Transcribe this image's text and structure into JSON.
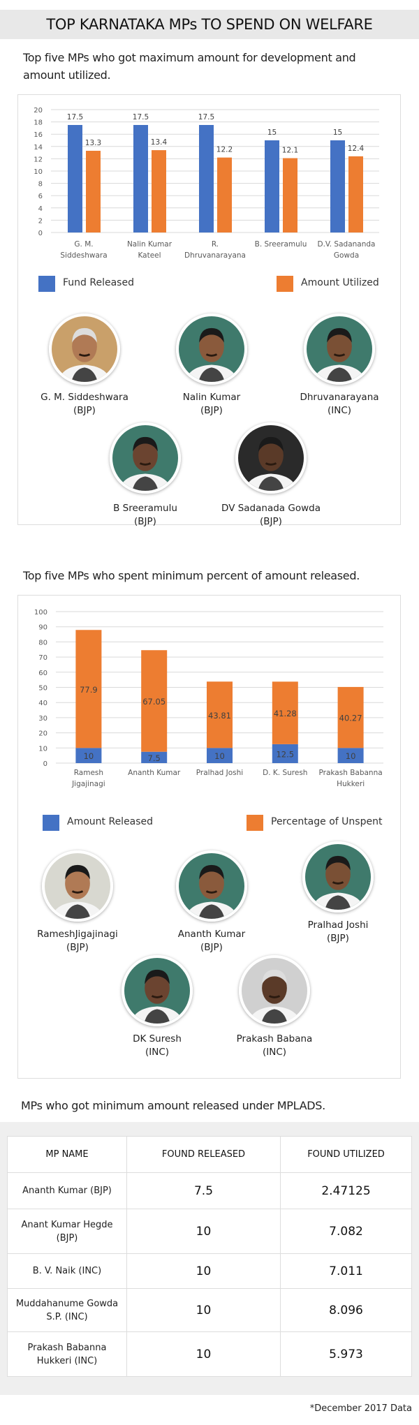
{
  "title": "TOP KARNATAKA MPs TO SPEND ON WELFARE",
  "section1": {
    "subtitle": "Top five MPs who got maximum amount for development and amount utilized.",
    "profiles": [
      {
        "name": "G. M. Siddeshwara",
        "party": "(BJP)"
      },
      {
        "name": "Nalin Kumar",
        "party": "(BJP)"
      },
      {
        "name": "Dhruvanarayana",
        "party": "(INC)"
      },
      {
        "name": "B Sreeramulu",
        "party": "(BJP)"
      },
      {
        "name": "DV Sadanada Gowda",
        "party": "(BJP)"
      }
    ]
  },
  "section2": {
    "subtitle": "Top five MPs who spent minimum percent of amount released.",
    "profiles": [
      {
        "name": "RameshJigajinagi",
        "party": "(BJP)"
      },
      {
        "name": "Ananth Kumar",
        "party": "(BJP)"
      },
      {
        "name": "Pralhad Joshi",
        "party": "(BJP)"
      },
      {
        "name": "DK Suresh",
        "party": "(INC)"
      },
      {
        "name": "Prakash Babana",
        "party": "(INC)"
      }
    ]
  },
  "section3": {
    "subtitle": "MPs who got minimum amount released under MPLADS.",
    "headers": [
      "MP NAME",
      "FOUND RELEASED",
      "FOUND UTILIZED"
    ],
    "rows": [
      [
        "Ananth Kumar (BJP)",
        "7.5",
        "2.47125"
      ],
      [
        "Anant Kumar Hegde (BJP)",
        "10",
        "7.082"
      ],
      [
        "B. V. Naik (INC)",
        "10",
        "7.011"
      ],
      [
        "Muddahanume Gowda S.P. (INC)",
        "10",
        "8.096"
      ],
      [
        "Prakash Babanna Hukkeri (INC)",
        "10",
        "5.973"
      ]
    ]
  },
  "footnote": "*December 2017 Data",
  "colors": {
    "blue": "#4472c4",
    "orange": "#ed7d31"
  },
  "chart_data": [
    {
      "type": "bar",
      "categories": [
        [
          "G. M.",
          "Siddeshwara"
        ],
        [
          "Nalin Kumar",
          "Kateel"
        ],
        [
          "R.",
          "Dhruvanarayana"
        ],
        [
          "B. Sreeramulu"
        ],
        [
          "D.V. Sadananda",
          "Gowda"
        ]
      ],
      "series": [
        {
          "name": "Fund Released",
          "values": [
            17.5,
            17.5,
            17.5,
            15,
            15
          ],
          "color": "#4472c4"
        },
        {
          "name": "Amount Utilized",
          "values": [
            13.3,
            13.4,
            12.2,
            12.1,
            12.4
          ],
          "color": "#ed7d31"
        }
      ],
      "ylim": [
        0,
        20
      ],
      "yticks": [
        0,
        2,
        4,
        6,
        8,
        10,
        12,
        14,
        16,
        18,
        20
      ],
      "grid": true,
      "legend": "bottom",
      "data_labels": true
    },
    {
      "type": "bar",
      "stacked": true,
      "categories": [
        [
          "Ramesh",
          "Jigajinagi"
        ],
        [
          "Ananth Kumar"
        ],
        [
          "Pralhad Joshi"
        ],
        [
          "D. K. Suresh"
        ],
        [
          "Prakash Babanna",
          "Hukkeri"
        ]
      ],
      "series": [
        {
          "name": "Amount Released",
          "values": [
            10,
            7.5,
            10,
            12.5,
            10
          ],
          "color": "#4472c4"
        },
        {
          "name": "Percentage of Unspent",
          "values": [
            77.9,
            67.05,
            43.81,
            41.28,
            40.27
          ],
          "color": "#ed7d31"
        }
      ],
      "ylim": [
        0,
        100
      ],
      "yticks": [
        0,
        10,
        20,
        30,
        40,
        50,
        60,
        70,
        80,
        90,
        100
      ],
      "grid": true,
      "legend": "bottom",
      "data_labels": true
    }
  ]
}
